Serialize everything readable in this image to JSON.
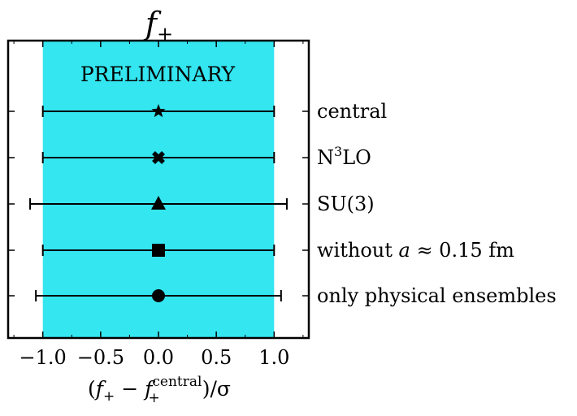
{
  "chart_data": {
    "type": "errorbar",
    "title": "f+",
    "title_parts": {
      "base": "f",
      "sub": "+"
    },
    "annotation": "PRELIMINARY",
    "xlabel": "(f+ − f+central)/σ",
    "xlabel_parts": {
      "open": "(",
      "f1": "f",
      "sub1": "+",
      "minus": " − ",
      "f2": "f",
      "sub2": "+",
      "sup2": "central",
      "close": ")/σ"
    },
    "xlim": [
      -1.3,
      1.3
    ],
    "xticks": [
      -1.0,
      -0.5,
      0.0,
      0.5,
      1.0
    ],
    "xtick_labels": [
      "−1.0",
      "−0.5",
      "0.0",
      "0.5",
      "1.0"
    ],
    "band": {
      "from": -1.0,
      "to": 1.0,
      "color": "#33e6f0"
    },
    "grid": false,
    "points": [
      {
        "label": "central",
        "marker": "star",
        "x": 0.0,
        "xerr_low": -1.0,
        "xerr_high": 1.0
      },
      {
        "label": "N3LO",
        "label_parts": {
          "base": "N",
          "sup": "3",
          "rest": "LO"
        },
        "marker": "x",
        "x": 0.0,
        "xerr_low": -1.0,
        "xerr_high": 1.0
      },
      {
        "label": "SU(3)",
        "marker": "triangle",
        "x": 0.0,
        "xerr_low": -1.11,
        "xerr_high": 1.11
      },
      {
        "label": "without a ≈ 0.15 fm",
        "label_parts": {
          "pre": "without ",
          "var": "a",
          "rest": " ≈ 0.15 fm"
        },
        "marker": "square",
        "x": 0.0,
        "xerr_low": -1.0,
        "xerr_high": 1.0
      },
      {
        "label": "only physical ensembles",
        "marker": "circle",
        "x": 0.0,
        "xerr_low": -1.06,
        "xerr_high": 1.06
      }
    ]
  }
}
